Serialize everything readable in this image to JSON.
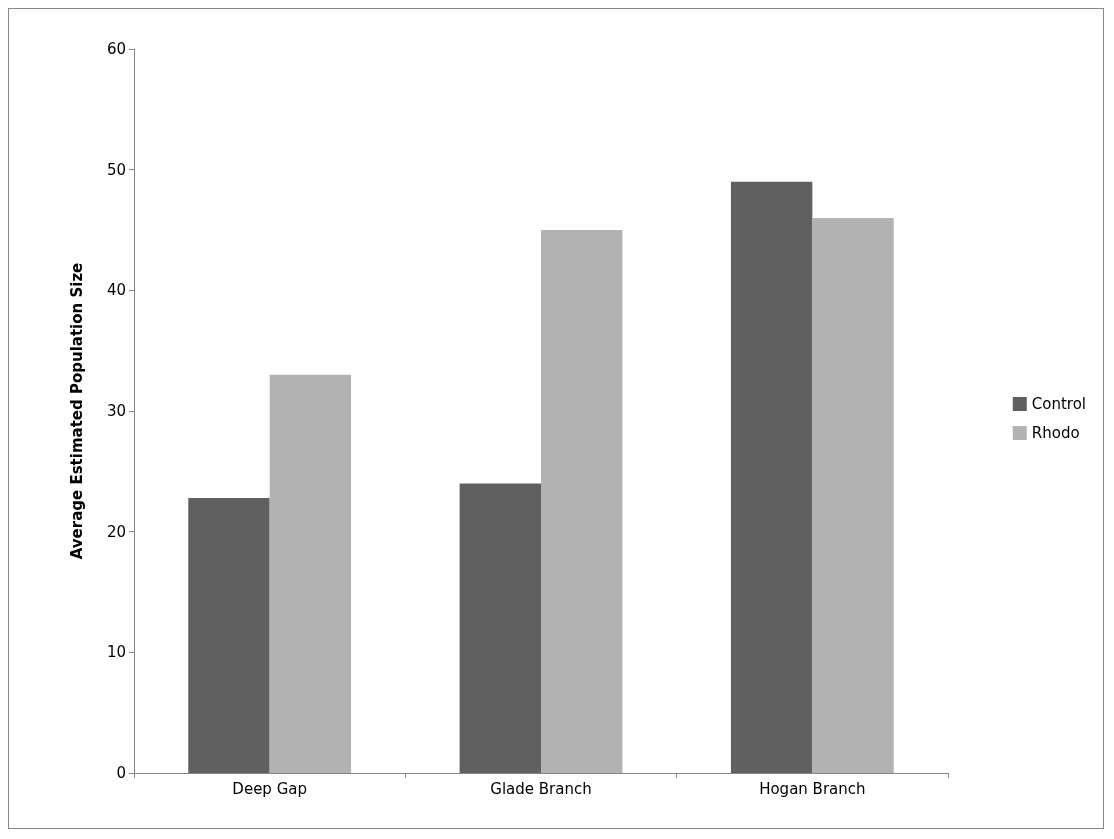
{
  "chart_data": {
    "type": "bar",
    "ylabel": "Average Estimated Population Size",
    "categories": [
      "Deep Gap",
      "Glade Branch",
      "Hogan Branch"
    ],
    "series": [
      {
        "name": "Control",
        "color": "#606060",
        "values": [
          22.8,
          24,
          49
        ]
      },
      {
        "name": "Rhodo",
        "color": "#b2b2b2",
        "values": [
          33,
          45,
          46
        ]
      }
    ],
    "ylim": [
      0,
      60
    ],
    "yticks": [
      0,
      10,
      20,
      30,
      40,
      50,
      60
    ],
    "grid": false,
    "legend": "right"
  }
}
